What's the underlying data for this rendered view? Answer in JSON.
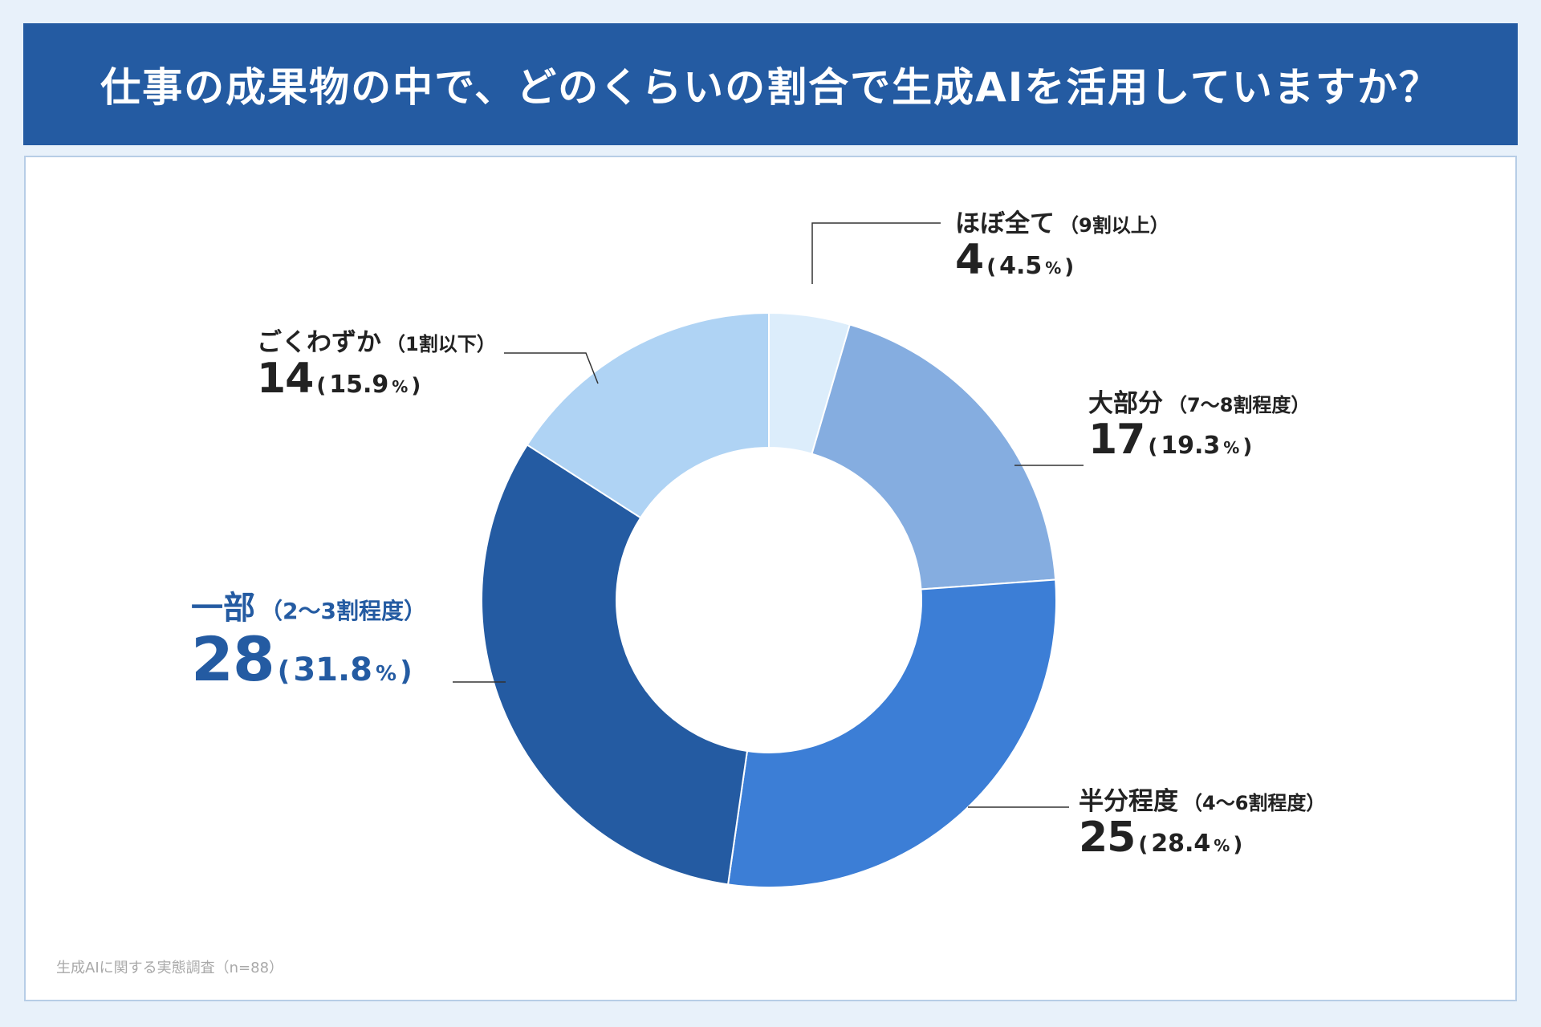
{
  "title": "仕事の成果物の中で、どのくらいの割合で生成AIを活用していますか？",
  "source_note": "生成AIに関する実態調査（n=88）",
  "chart_data": {
    "type": "pie",
    "title": "仕事の成果物の中で、どのくらいの割合で生成AIを活用していますか？",
    "n": 88,
    "slices": [
      {
        "label": "ほぼ全て",
        "sub": "（9割以上）",
        "count": 4,
        "percent": 4.5,
        "color": "#dcedfb"
      },
      {
        "label": "大部分",
        "sub": "（7〜8割程度）",
        "count": 17,
        "percent": 19.3,
        "color": "#85ade0"
      },
      {
        "label": "半分程度",
        "sub": "（4〜6割程度）",
        "count": 25,
        "percent": 28.4,
        "color": "#3c7ed6"
      },
      {
        "label": "一部",
        "sub": "（2〜3割程度）",
        "count": 28,
        "percent": 31.8,
        "color": "#245ba2"
      },
      {
        "label": "ごくわずか",
        "sub": "（1割以下）",
        "count": 14,
        "percent": 15.9,
        "color": "#afd3f4"
      }
    ],
    "legend": "none",
    "highlight": "一部"
  }
}
